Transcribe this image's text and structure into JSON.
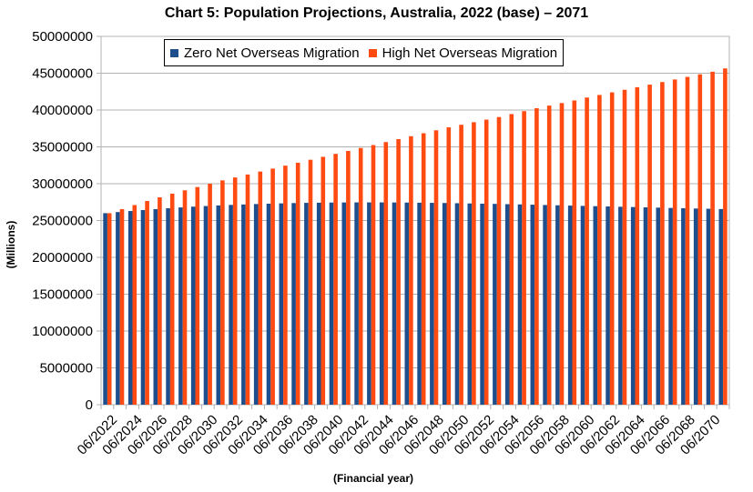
{
  "chart_data": {
    "type": "bar",
    "title": "Chart 5: Population Projections, Australia, 2022 (base) – 2071",
    "xlabel": "(Financial year)",
    "ylabel": "(Millions)",
    "ylim": [
      0,
      50000000
    ],
    "y_ticks": [
      "0",
      "5000000",
      "10000000",
      "15000000",
      "20000000",
      "25000000",
      "30000000",
      "35000000",
      "40000000",
      "45000000",
      "50000000"
    ],
    "x_tick_labels": [
      "06/2022",
      "06/2024",
      "06/2026",
      "06/2028",
      "06/2030",
      "06/2032",
      "06/2034",
      "06/2036",
      "06/2038",
      "06/2040",
      "06/2042",
      "06/2044",
      "06/2046",
      "06/2048",
      "06/2050",
      "06/2052",
      "06/2054",
      "06/2056",
      "06/2058",
      "06/2060",
      "06/2062",
      "06/2064",
      "06/2066",
      "06/2068",
      "06/2070"
    ],
    "grid": true,
    "legend_placement": "top-left",
    "categories": [
      "06/2022",
      "06/2023",
      "06/2024",
      "06/2025",
      "06/2026",
      "06/2027",
      "06/2028",
      "06/2029",
      "06/2030",
      "06/2031",
      "06/2032",
      "06/2033",
      "06/2034",
      "06/2035",
      "06/2036",
      "06/2037",
      "06/2038",
      "06/2039",
      "06/2040",
      "06/2041",
      "06/2042",
      "06/2043",
      "06/2044",
      "06/2045",
      "06/2046",
      "06/2047",
      "06/2048",
      "06/2049",
      "06/2050",
      "06/2051",
      "06/2052",
      "06/2053",
      "06/2054",
      "06/2055",
      "06/2056",
      "06/2057",
      "06/2058",
      "06/2059",
      "06/2060",
      "06/2061",
      "06/2062",
      "06/2063",
      "06/2064",
      "06/2065",
      "06/2066",
      "06/2067",
      "06/2068",
      "06/2069",
      "06/2070",
      "06/2071"
    ],
    "series": [
      {
        "name": "Zero Net Overseas Migration",
        "color": "#1f4e8c",
        "values": [
          26000000,
          26150000,
          26290000,
          26420000,
          26550000,
          26670000,
          26780000,
          26880000,
          26970000,
          27050000,
          27120000,
          27180000,
          27240000,
          27290000,
          27330000,
          27370000,
          27400000,
          27420000,
          27440000,
          27450000,
          27460000,
          27460000,
          27460000,
          27450000,
          27440000,
          27420000,
          27400000,
          27380000,
          27350000,
          27320000,
          27290000,
          27260000,
          27220000,
          27190000,
          27150000,
          27110000,
          27070000,
          27030000,
          26990000,
          26950000,
          26910000,
          26870000,
          26830000,
          26790000,
          26750000,
          26710000,
          26670000,
          26630000,
          26600000,
          26560000
        ]
      },
      {
        "name": "High Net Overseas Migration",
        "color": "#ff4b12",
        "values": [
          26000000,
          26550000,
          27100000,
          27650000,
          28150000,
          28650000,
          29100000,
          29550000,
          30000000,
          30450000,
          30850000,
          31250000,
          31650000,
          32050000,
          32450000,
          32850000,
          33250000,
          33650000,
          34050000,
          34450000,
          34850000,
          35250000,
          35650000,
          36050000,
          36450000,
          36850000,
          37250000,
          37650000,
          38000000,
          38350000,
          38700000,
          39050000,
          39450000,
          39850000,
          40250000,
          40600000,
          40950000,
          41300000,
          41700000,
          42050000,
          42400000,
          42750000,
          43100000,
          43450000,
          43800000,
          44150000,
          44500000,
          44850000,
          45200000,
          45650000
        ]
      }
    ]
  }
}
